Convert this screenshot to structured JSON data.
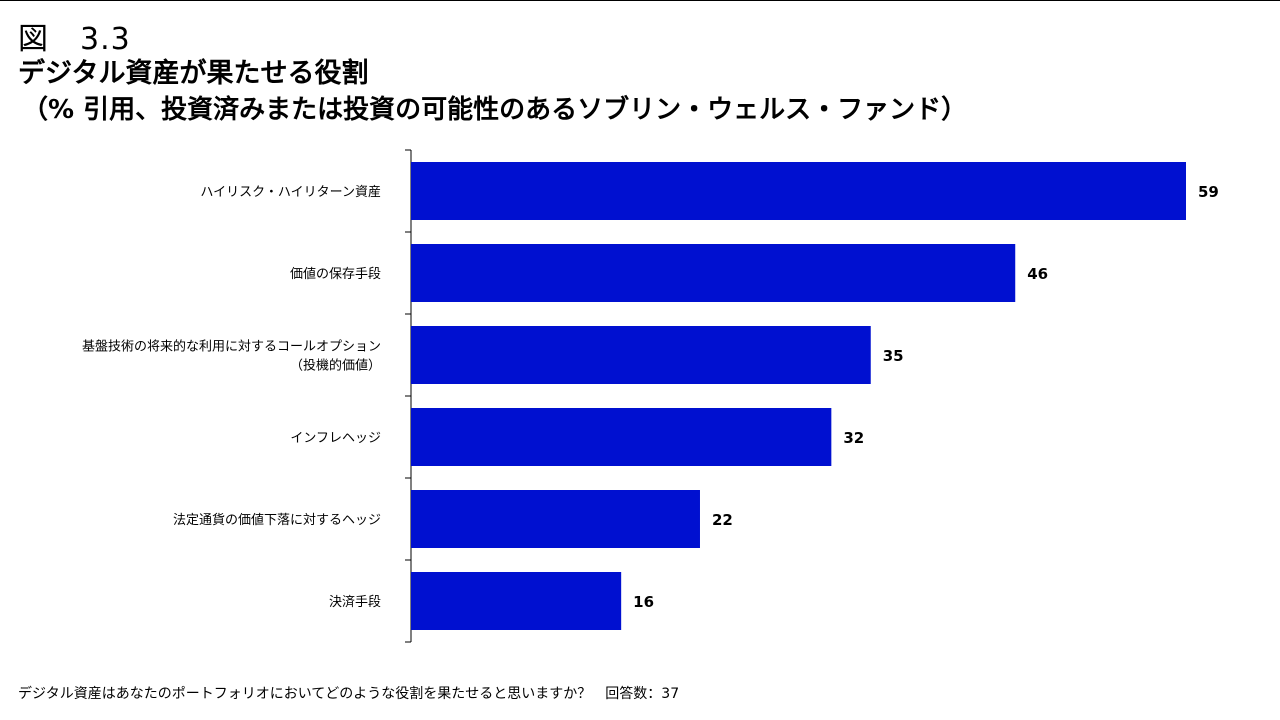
{
  "figure": {
    "number": "図　3.3",
    "title": "デジタル資産が果たせる役割",
    "subtitle": "（% 引用、投資済みまたは投資の可能性のあるソブリン・ウェルス・ファンド）"
  },
  "chart_data": {
    "type": "bar",
    "orientation": "horizontal",
    "categories": [
      [
        "ハイリスク・ハイリターン資産"
      ],
      [
        "価値の保存手段"
      ],
      [
        "基盤技術の将来的な利用に対するコールオプション",
        "（投機的価値）"
      ],
      [
        "インフレヘッジ"
      ],
      [
        "法定通貨の価値下落に対するヘッジ"
      ],
      [
        "決済手段"
      ]
    ],
    "values": [
      59,
      46,
      35,
      32,
      22,
      16
    ],
    "xlim": [
      0,
      59
    ],
    "bar_color": "#0010d0",
    "grid": false,
    "data_labels": true
  },
  "footnote": "デジタル資産はあなたのポートフォリオにおいてどのような役割を果たせると思いますか？　回答数：37"
}
